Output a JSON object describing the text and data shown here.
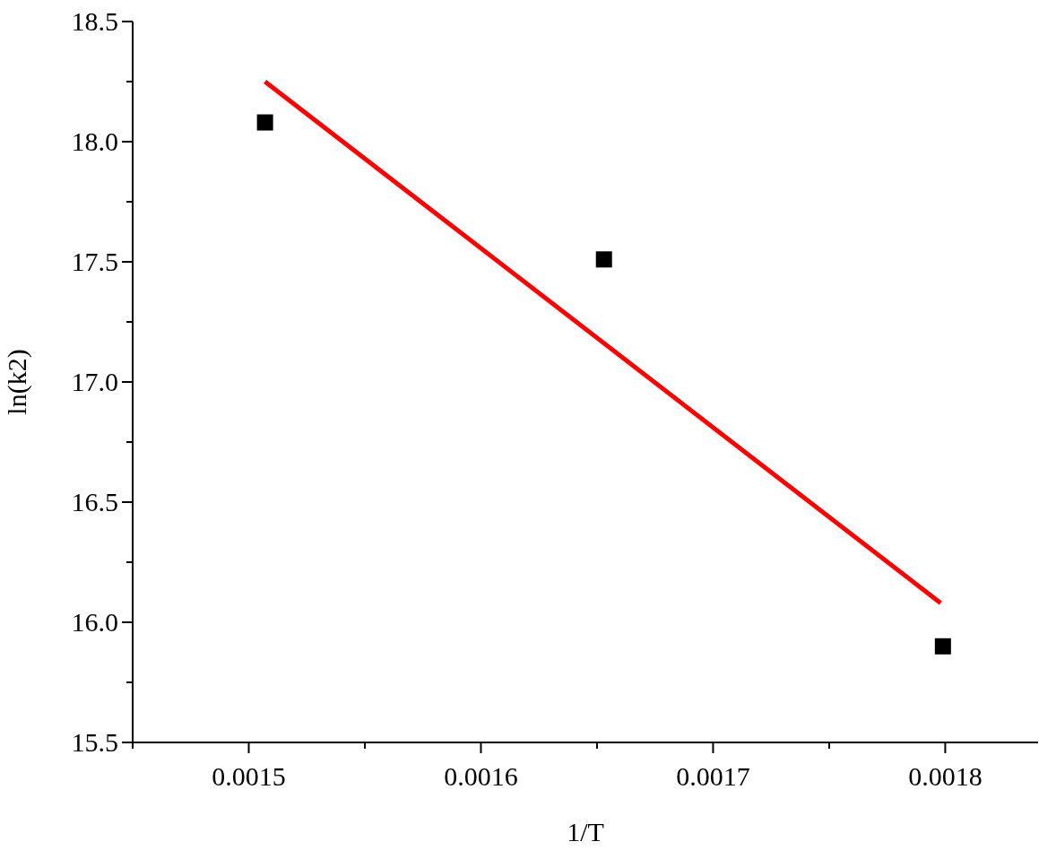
{
  "chart_data": {
    "type": "scatter",
    "xlabel": "1/T",
    "ylabel": "ln(k2)",
    "series": [
      {
        "color": "#000000",
        "marker": "square",
        "x": [
          0.001507,
          0.001653,
          0.001799
        ],
        "values": [
          18.08,
          17.51,
          15.9
        ]
      },
      {
        "type": "line",
        "color": "#ff0000",
        "line_style": "solid",
        "x": [
          0.001507,
          0.001798
        ],
        "values": [
          18.25,
          16.08
        ]
      }
    ],
    "xlim": [
      0.00145,
      0.00184
    ],
    "xticks": [
      {
        "value": 0.00145,
        "label": null
      },
      0.0015,
      {
        "value": 0.00155,
        "label": null
      },
      0.0016,
      {
        "value": 0.00165,
        "label": null
      },
      0.0017,
      {
        "value": 0.00175,
        "label": null
      },
      0.0018
    ],
    "ylim": [
      15.5,
      18.5
    ],
    "yticks": [
      {
        "value": 15.5,
        "label": "15.5"
      },
      {
        "value": 15.75,
        "label": null
      },
      {
        "value": 16,
        "label": "16.0"
      },
      {
        "value": 16.25,
        "label": null
      },
      {
        "value": 16.5,
        "label": "16.5"
      },
      {
        "value": 16.75,
        "label": null
      },
      {
        "value": 17,
        "label": "17.0"
      },
      {
        "value": 17.25,
        "label": null
      },
      {
        "value": 17.5,
        "label": "17.5"
      },
      {
        "value": 17.75,
        "label": null
      },
      {
        "value": 18,
        "label": "18.0"
      },
      {
        "value": 18.25,
        "label": null
      },
      {
        "value": 18.5,
        "label": "18.5"
      }
    ],
    "grid": false,
    "legend": false
  }
}
